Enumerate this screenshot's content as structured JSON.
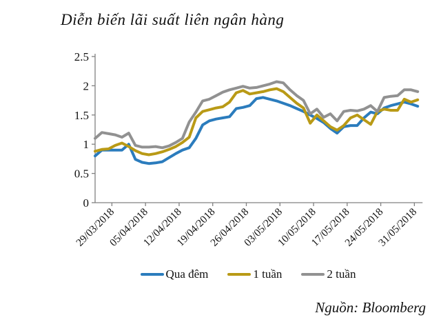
{
  "title": "Diễn biến lãi suất liên ngân hàng",
  "source": "Nguồn: Bloomberg",
  "chart_data": {
    "type": "line",
    "title": "Diễn biến lãi suất liên ngân hàng",
    "xlabel": "",
    "ylabel": "",
    "ylim": [
      0,
      2.5
    ],
    "y_tick_labels": [
      "0",
      "0.5",
      "1",
      "1.5",
      "2",
      "2.5"
    ],
    "y_tick_values": [
      0,
      0.5,
      1,
      1.5,
      2,
      2.5
    ],
    "x_tick_labels": [
      "29/03/2018",
      "05/04/2018",
      "12/04/2018",
      "19/04/2018",
      "26/04/2018",
      "03/05/2018",
      "10/05/2018",
      "17/05/2018",
      "24/05/2018",
      "31/05/2018"
    ],
    "x_tick_start_index": 2.5,
    "x_tick_step": 5,
    "grid": false,
    "legend_position": "bottom",
    "axis_color": "#808080",
    "text_color": "#111111",
    "series": [
      {
        "name": "Qua đêm",
        "color": "#2b7cbd",
        "values": [
          0.8,
          0.9,
          0.9,
          0.9,
          0.9,
          1.0,
          0.74,
          0.69,
          0.67,
          0.68,
          0.7,
          0.77,
          0.84,
          0.9,
          0.94,
          1.1,
          1.33,
          1.4,
          1.43,
          1.45,
          1.47,
          1.61,
          1.63,
          1.66,
          1.78,
          1.8,
          1.77,
          1.74,
          1.7,
          1.66,
          1.61,
          1.56,
          1.5,
          1.44,
          1.37,
          1.27,
          1.19,
          1.3,
          1.32,
          1.32,
          1.45,
          1.55,
          1.52,
          1.62,
          1.66,
          1.69,
          1.72,
          1.69,
          1.65
        ]
      },
      {
        "name": "1 tuần",
        "color": "#b99a16",
        "values": [
          0.88,
          0.91,
          0.92,
          0.98,
          1.02,
          0.96,
          0.89,
          0.84,
          0.82,
          0.84,
          0.87,
          0.91,
          0.96,
          1.03,
          1.12,
          1.45,
          1.56,
          1.59,
          1.62,
          1.64,
          1.72,
          1.88,
          1.92,
          1.86,
          1.88,
          1.9,
          1.93,
          1.95,
          1.9,
          1.8,
          1.7,
          1.62,
          1.36,
          1.5,
          1.4,
          1.3,
          1.24,
          1.32,
          1.45,
          1.5,
          1.42,
          1.34,
          1.56,
          1.6,
          1.58,
          1.58,
          1.77,
          1.72,
          1.76
        ]
      },
      {
        "name": "2 tuần",
        "color": "#919191",
        "values": [
          1.1,
          1.2,
          1.18,
          1.16,
          1.12,
          1.19,
          0.98,
          0.95,
          0.95,
          0.96,
          0.94,
          0.97,
          1.03,
          1.1,
          1.38,
          1.55,
          1.74,
          1.77,
          1.83,
          1.89,
          1.93,
          1.96,
          1.99,
          1.96,
          1.97,
          2.0,
          2.03,
          2.07,
          2.05,
          1.93,
          1.83,
          1.75,
          1.52,
          1.6,
          1.46,
          1.52,
          1.4,
          1.56,
          1.58,
          1.57,
          1.6,
          1.66,
          1.56,
          1.8,
          1.82,
          1.83,
          1.93,
          1.93,
          1.9
        ]
      }
    ]
  }
}
